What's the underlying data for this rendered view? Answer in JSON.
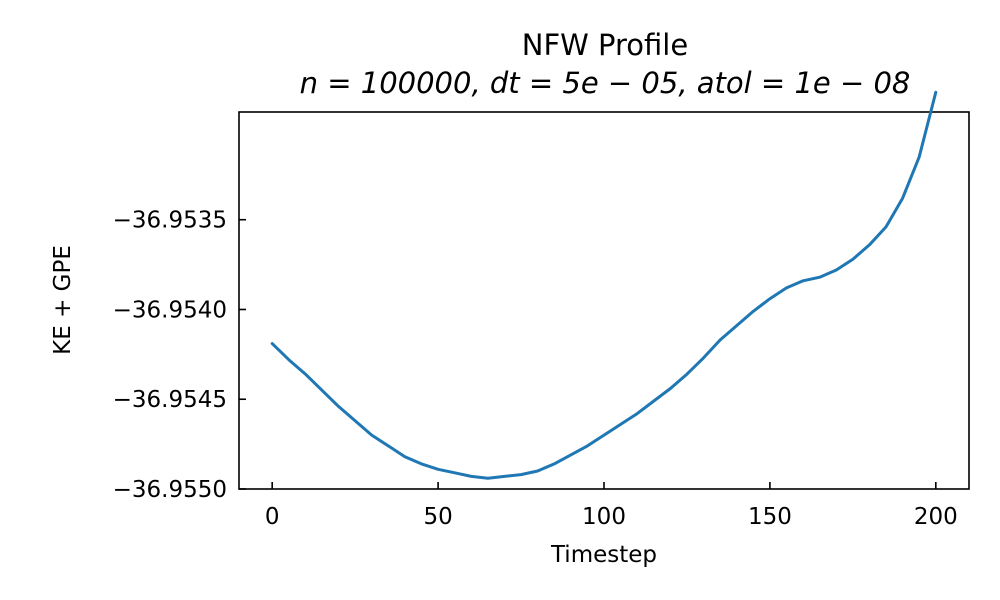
{
  "chart_data": {
    "type": "line",
    "title": "NFW Profile",
    "subtitle": "n = 100000, dt = 5e − 05, atol = 1e − 08",
    "xlabel": "Timestep",
    "ylabel": "KE + GPE",
    "xlim": [
      -10,
      210
    ],
    "ylim": [
      -36.955,
      -36.9529
    ],
    "x_ticks": [
      0,
      50,
      100,
      150,
      200
    ],
    "x_tick_labels": [
      "0",
      "50",
      "100",
      "150",
      "200"
    ],
    "y_ticks": [
      -36.9535,
      -36.954,
      -36.9545,
      -36.955
    ],
    "y_tick_labels": [
      "−36.9535",
      "−36.9540",
      "−36.9545",
      "−36.9550"
    ],
    "grid": false,
    "series": [
      {
        "color": "#1f77b4",
        "x": [
          0,
          5,
          10,
          15,
          20,
          25,
          30,
          35,
          40,
          45,
          50,
          55,
          60,
          65,
          70,
          75,
          80,
          85,
          90,
          95,
          100,
          105,
          110,
          115,
          120,
          125,
          130,
          135,
          140,
          145,
          150,
          155,
          160,
          165,
          170,
          175,
          180,
          185,
          190,
          195,
          200
        ],
        "values": [
          -36.95419,
          -36.95428,
          -36.95436,
          -36.95445,
          -36.95454,
          -36.95462,
          -36.9547,
          -36.95476,
          -36.95482,
          -36.95486,
          -36.95489,
          -36.95491,
          -36.95493,
          -36.95494,
          -36.95493,
          -36.95492,
          -36.9549,
          -36.95486,
          -36.95481,
          -36.95476,
          -36.9547,
          -36.95464,
          -36.95458,
          -36.95451,
          -36.95444,
          -36.95436,
          -36.95427,
          -36.95417,
          -36.95409,
          -36.95401,
          -36.95394,
          -36.95388,
          -36.95384,
          -36.95382,
          -36.95378,
          -36.95372,
          -36.95364,
          -36.95354,
          -36.95338,
          -36.95315,
          -36.95279
        ]
      }
    ]
  }
}
